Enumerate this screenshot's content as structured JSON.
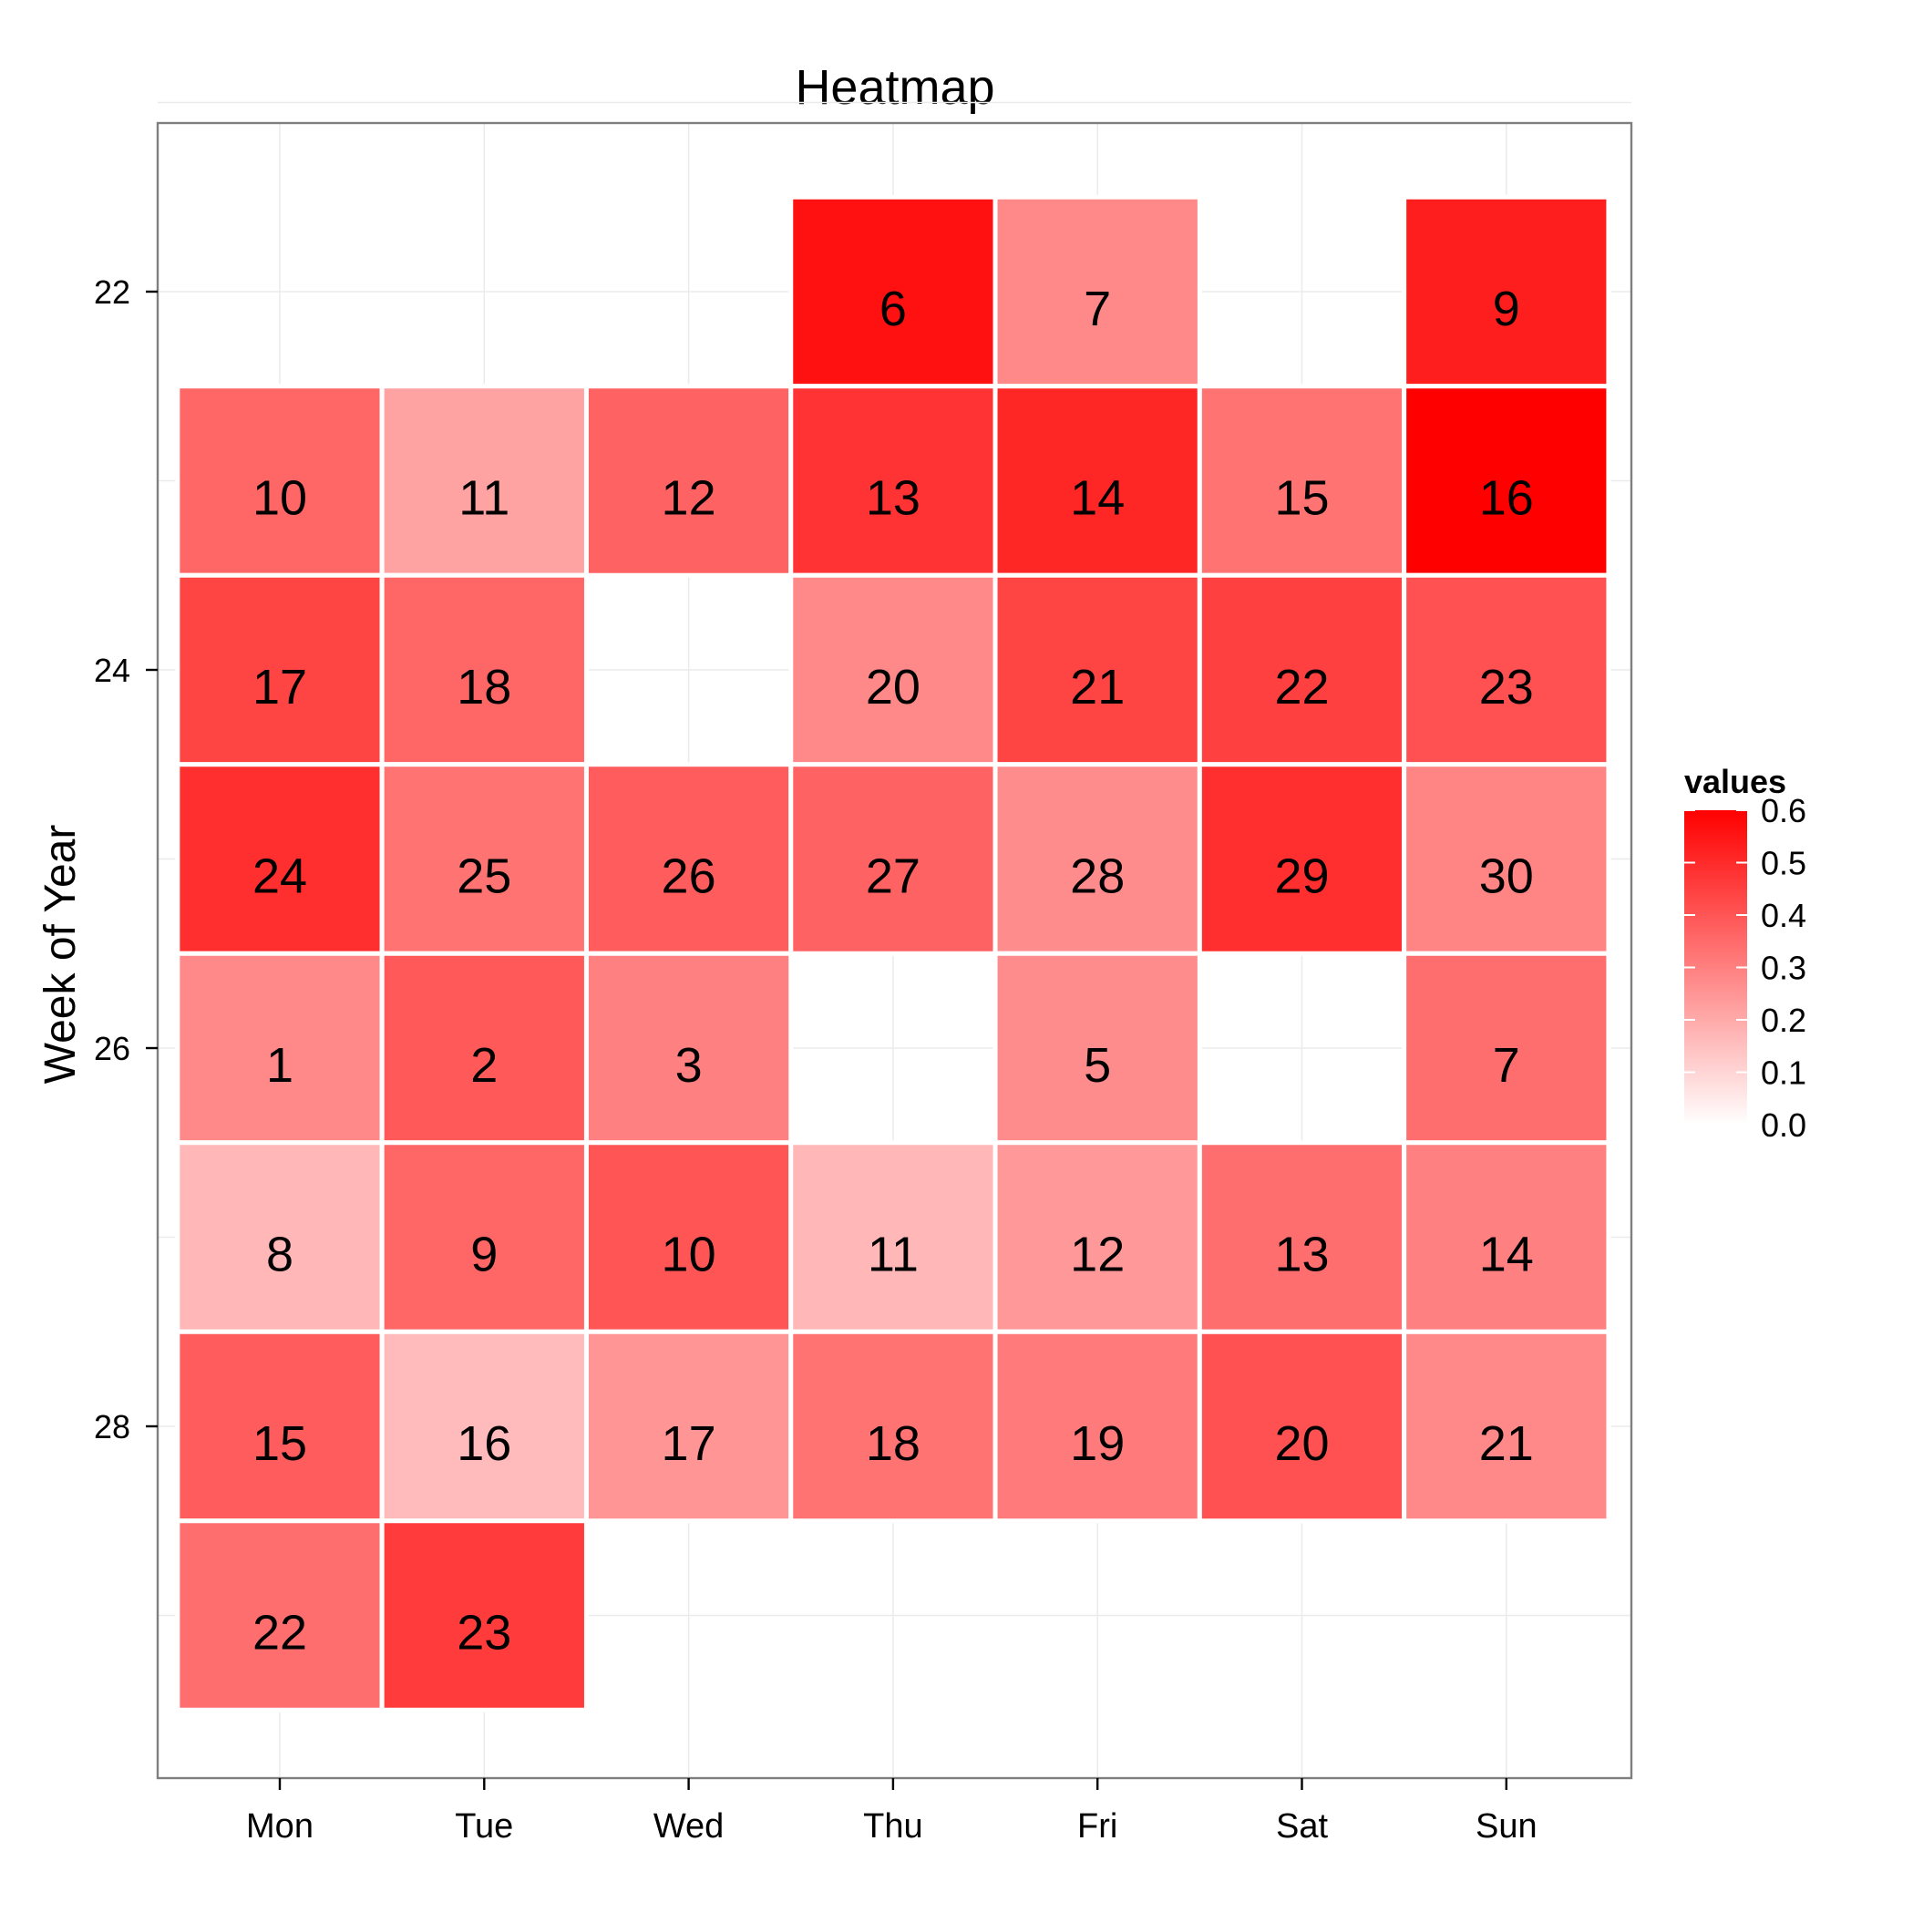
{
  "chart_data": {
    "type": "heatmap",
    "title": "Heatmap",
    "xlabel": "",
    "ylabel": "Week of Year",
    "x_categories": [
      "Mon",
      "Tue",
      "Wed",
      "Thu",
      "Fri",
      "Sat",
      "Sun"
    ],
    "y_range": [
      21,
      29
    ],
    "y_ticks": [
      22,
      24,
      26,
      28
    ],
    "y_reversed": true,
    "grid": true,
    "legend": {
      "title": "values",
      "placement": "right",
      "range": [
        0.0,
        0.6
      ],
      "ticks": [
        "0.0",
        "0.1",
        "0.2",
        "0.3",
        "0.4",
        "0.5",
        "0.6"
      ],
      "low_color": "#ffffff",
      "high_color": "#ff0000"
    },
    "cells": [
      {
        "x": "Thu",
        "y": 22,
        "label": "6",
        "value": 0.56
      },
      {
        "x": "Fri",
        "y": 22,
        "label": "7",
        "value": 0.28
      },
      {
        "x": "Sun",
        "y": 22,
        "label": "9",
        "value": 0.53
      },
      {
        "x": "Mon",
        "y": 23,
        "label": "10",
        "value": 0.36
      },
      {
        "x": "Tue",
        "y": 23,
        "label": "11",
        "value": 0.22
      },
      {
        "x": "Wed",
        "y": 23,
        "label": "12",
        "value": 0.37
      },
      {
        "x": "Thu",
        "y": 23,
        "label": "13",
        "value": 0.48
      },
      {
        "x": "Fri",
        "y": 23,
        "label": "14",
        "value": 0.51
      },
      {
        "x": "Sat",
        "y": 23,
        "label": "15",
        "value": 0.33
      },
      {
        "x": "Sun",
        "y": 23,
        "label": "16",
        "value": 0.6
      },
      {
        "x": "Mon",
        "y": 24,
        "label": "17",
        "value": 0.44
      },
      {
        "x": "Tue",
        "y": 24,
        "label": "18",
        "value": 0.36
      },
      {
        "x": "Thu",
        "y": 24,
        "label": "20",
        "value": 0.28
      },
      {
        "x": "Fri",
        "y": 24,
        "label": "21",
        "value": 0.44
      },
      {
        "x": "Sat",
        "y": 24,
        "label": "22",
        "value": 0.45
      },
      {
        "x": "Sun",
        "y": 24,
        "label": "23",
        "value": 0.41
      },
      {
        "x": "Mon",
        "y": 25,
        "label": "24",
        "value": 0.49
      },
      {
        "x": "Tue",
        "y": 25,
        "label": "25",
        "value": 0.33
      },
      {
        "x": "Wed",
        "y": 25,
        "label": "26",
        "value": 0.38
      },
      {
        "x": "Thu",
        "y": 25,
        "label": "27",
        "value": 0.37
      },
      {
        "x": "Fri",
        "y": 25,
        "label": "28",
        "value": 0.27
      },
      {
        "x": "Sat",
        "y": 25,
        "label": "29",
        "value": 0.49
      },
      {
        "x": "Sun",
        "y": 25,
        "label": "30",
        "value": 0.29
      },
      {
        "x": "Mon",
        "y": 26,
        "label": "1",
        "value": 0.28
      },
      {
        "x": "Tue",
        "y": 26,
        "label": "2",
        "value": 0.39
      },
      {
        "x": "Wed",
        "y": 26,
        "label": "3",
        "value": 0.3
      },
      {
        "x": "Fri",
        "y": 26,
        "label": "5",
        "value": 0.27
      },
      {
        "x": "Sun",
        "y": 26,
        "label": "7",
        "value": 0.34
      },
      {
        "x": "Mon",
        "y": 27,
        "label": "8",
        "value": 0.17
      },
      {
        "x": "Tue",
        "y": 27,
        "label": "9",
        "value": 0.36
      },
      {
        "x": "Wed",
        "y": 27,
        "label": "10",
        "value": 0.4
      },
      {
        "x": "Thu",
        "y": 27,
        "label": "11",
        "value": 0.17
      },
      {
        "x": "Fri",
        "y": 27,
        "label": "12",
        "value": 0.24
      },
      {
        "x": "Sat",
        "y": 27,
        "label": "13",
        "value": 0.34
      },
      {
        "x": "Sun",
        "y": 27,
        "label": "14",
        "value": 0.3
      },
      {
        "x": "Mon",
        "y": 28,
        "label": "15",
        "value": 0.38
      },
      {
        "x": "Tue",
        "y": 28,
        "label": "16",
        "value": 0.16
      },
      {
        "x": "Wed",
        "y": 28,
        "label": "17",
        "value": 0.25
      },
      {
        "x": "Thu",
        "y": 28,
        "label": "18",
        "value": 0.33
      },
      {
        "x": "Fri",
        "y": 28,
        "label": "19",
        "value": 0.31
      },
      {
        "x": "Sat",
        "y": 28,
        "label": "20",
        "value": 0.41
      },
      {
        "x": "Sun",
        "y": 28,
        "label": "21",
        "value": 0.28
      },
      {
        "x": "Mon",
        "y": 29,
        "label": "22",
        "value": 0.34
      },
      {
        "x": "Tue",
        "y": 29,
        "label": "23",
        "value": 0.46
      }
    ]
  },
  "colors": {
    "panel_border": "#7f7f7f",
    "grid": "#ebebeb",
    "tile_border": "#ffffff",
    "text": "#000000",
    "axis_text": "#000000",
    "axis_ticks": "#000000"
  }
}
